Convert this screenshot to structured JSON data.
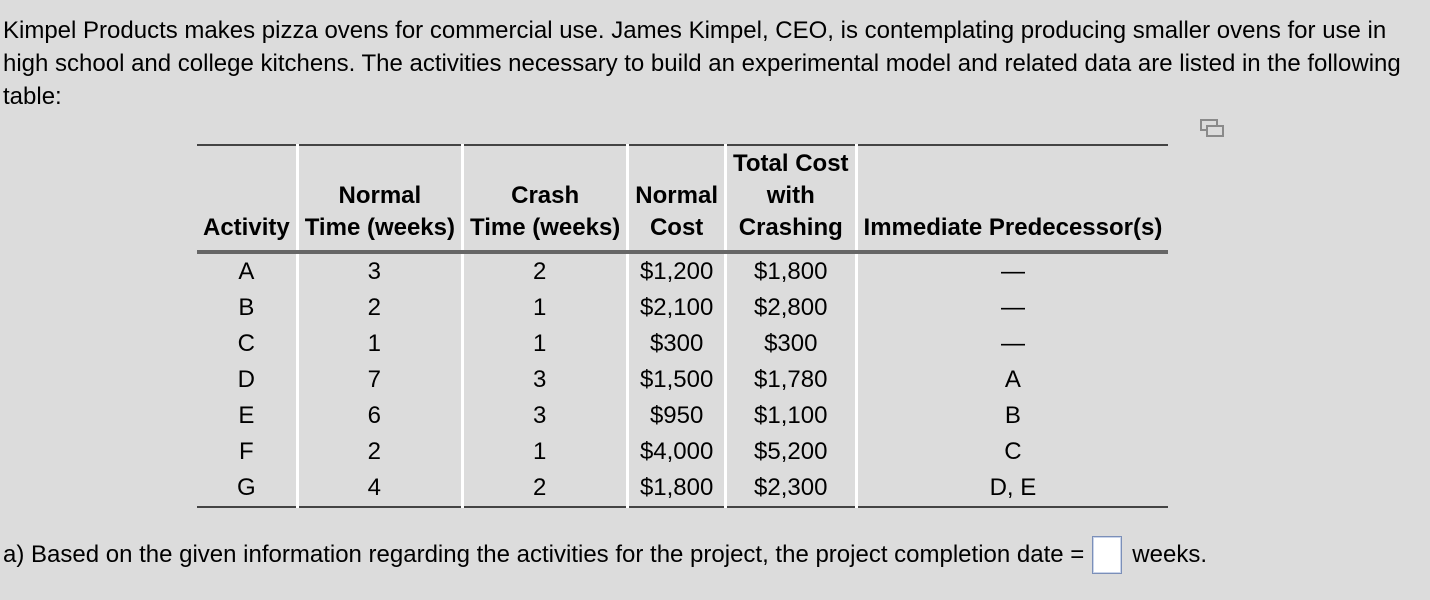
{
  "intro_text": "Kimpel Products makes pizza ovens for commercial use. James Kimpel, CEO, is contemplating producing smaller ovens for use in high school and college kitchens. The activities necessary to build an experimental model and related data are listed in the following table:",
  "copy_icon": "copy-icon",
  "table": {
    "headers": {
      "activity": "Activity",
      "normal_time": [
        "Normal",
        "Time (weeks)"
      ],
      "crash_time": [
        "Crash",
        "Time (weeks)"
      ],
      "normal_cost": [
        "Normal",
        "Cost"
      ],
      "total_cost": [
        "Total Cost",
        "with",
        "Crashing"
      ],
      "predecessors": "Immediate Predecessor(s)"
    },
    "rows": [
      {
        "activity": "A",
        "normal_time": "3",
        "crash_time": "2",
        "normal_cost": "$1,200",
        "total_cost": "$1,800",
        "predecessors": "—"
      },
      {
        "activity": "B",
        "normal_time": "2",
        "crash_time": "1",
        "normal_cost": "$2,100",
        "total_cost": "$2,800",
        "predecessors": "—"
      },
      {
        "activity": "C",
        "normal_time": "1",
        "crash_time": "1",
        "normal_cost": "$300",
        "total_cost": "$300",
        "predecessors": "—"
      },
      {
        "activity": "D",
        "normal_time": "7",
        "crash_time": "3",
        "normal_cost": "$1,500",
        "total_cost": "$1,780",
        "predecessors": "A"
      },
      {
        "activity": "E",
        "normal_time": "6",
        "crash_time": "3",
        "normal_cost": "$950",
        "total_cost": "$1,100",
        "predecessors": "B"
      },
      {
        "activity": "F",
        "normal_time": "2",
        "crash_time": "1",
        "normal_cost": "$4,000",
        "total_cost": "$5,200",
        "predecessors": "C"
      },
      {
        "activity": "G",
        "normal_time": "4",
        "crash_time": "2",
        "normal_cost": "$1,800",
        "total_cost": "$2,300",
        "predecessors": "D, E"
      }
    ]
  },
  "question": {
    "prefix": "a) Based on the given information regarding the activities for the project, the project completion date =",
    "answer_value": "",
    "suffix": "weeks."
  }
}
